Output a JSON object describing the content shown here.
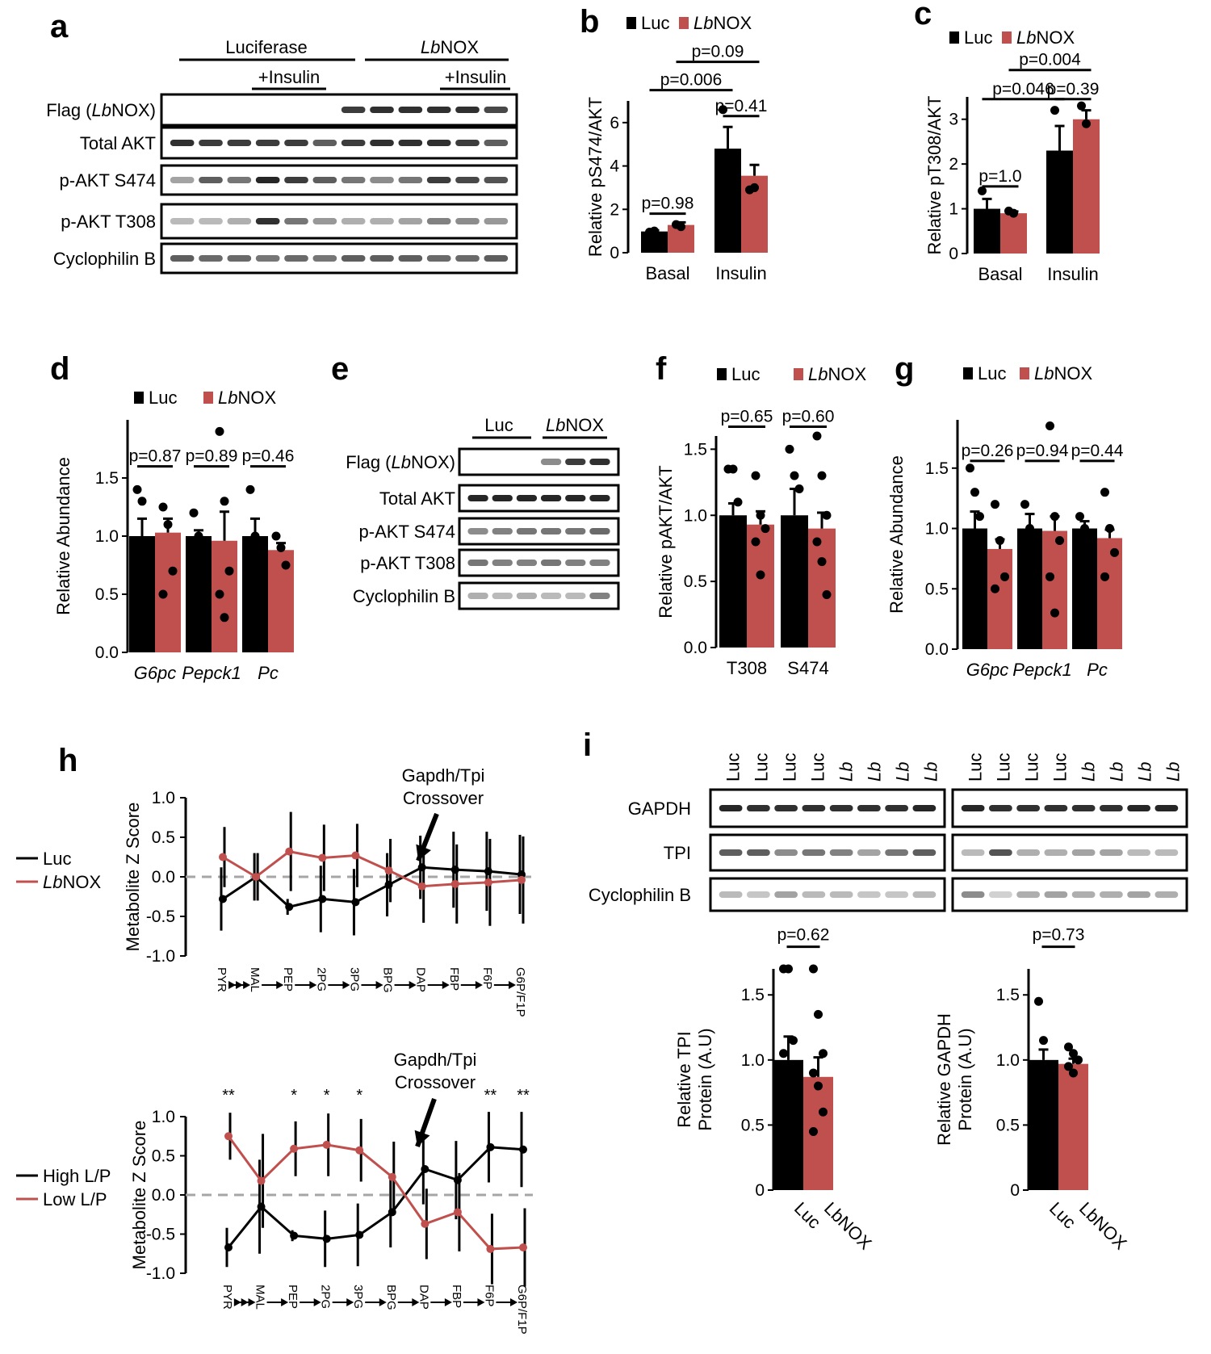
{
  "colors": {
    "luc": "#000000",
    "lbnox": "#c0504d",
    "dash": "#a6a6a6",
    "band": "#1a1a1a",
    "frame": "#000000"
  },
  "panel_a": {
    "label": "a",
    "group_left": "Luciferase",
    "group_right_italic": "Lb",
    "group_right_rest": "NOX",
    "insulin_left": "+Insulin",
    "insulin_right": "+Insulin",
    "rows": [
      {
        "pre": "Flag (",
        "it": "Lb",
        "post": "NOX)"
      },
      {
        "pre": "Total AKT",
        "it": "",
        "post": ""
      },
      {
        "pre": "p-AKT S474",
        "it": "",
        "post": ""
      },
      {
        "pre": "p-AKT T308",
        "it": "",
        "post": ""
      },
      {
        "pre": "Cyclophilin  B",
        "it": "",
        "post": ""
      }
    ]
  },
  "panel_e": {
    "label": "e",
    "group_left": "Luc",
    "group_right_italic": "Lb",
    "group_right_rest": "NOX",
    "rows": [
      {
        "pre": "Flag (",
        "it": "Lb",
        "post": "NOX)"
      },
      {
        "pre": "Total AKT",
        "it": "",
        "post": ""
      },
      {
        "pre": "p-AKT S474",
        "it": "",
        "post": ""
      },
      {
        "pre": "p-AKT T308",
        "it": "",
        "post": ""
      },
      {
        "pre": "Cyclophilin  B",
        "it": "",
        "post": ""
      }
    ]
  },
  "panel_i": {
    "label": "i",
    "lane_labels": [
      "Luc",
      "Luc",
      "Luc",
      "Luc",
      "Lb",
      "Lb",
      "Lb",
      "Lb"
    ],
    "rows": [
      "GAPDH",
      "TPI",
      "Cyclophilin  B"
    ]
  },
  "legend_luc": "Luc",
  "legend_lbnox_italic": "Lb",
  "legend_lbnox_rest": "NOX",
  "chart_data": [
    {
      "panel": "b",
      "type": "bar",
      "ylabel": "Relative pS474/AKT",
      "categories": [
        "Basal",
        "Insulin"
      ],
      "ylim": [
        0,
        7
      ],
      "yticks": [
        0,
        2,
        4,
        6
      ],
      "series": [
        {
          "name": "Luc",
          "values": [
            0.98,
            4.8
          ],
          "errors": [
            0.05,
            1.0
          ]
        },
        {
          "name": "LbNOX",
          "values": [
            1.28,
            3.55
          ],
          "errors": [
            0.12,
            0.5
          ]
        }
      ],
      "points": [
        [
          [
            0.95,
            1.0
          ],
          [
            1.3,
            1.2
          ]
        ],
        [
          [
            6.6,
            4.2
          ],
          [
            2.9,
            3.0
          ]
        ]
      ],
      "pvalues": [
        {
          "text": "p=0.98",
          "from": "0-0",
          "to": "0-1",
          "y": 1.8
        },
        {
          "text": "p=0.41",
          "from": "1-0",
          "to": "1-1",
          "y": 6.3
        },
        {
          "text": "p=0.006",
          "from": "0-0",
          "to": "1-0",
          "y": 7.5
        },
        {
          "text": "p=0.09",
          "from": "0-1",
          "to": "1-1",
          "y": 8.8
        }
      ]
    },
    {
      "panel": "c",
      "type": "bar",
      "ylabel": "Relative pT308/AKT",
      "categories": [
        "Basal",
        "Insulin"
      ],
      "ylim": [
        0,
        3.5
      ],
      "yticks": [
        0,
        1,
        2,
        3
      ],
      "series": [
        {
          "name": "Luc",
          "values": [
            1.0,
            2.3
          ],
          "errors": [
            0.22,
            0.55
          ]
        },
        {
          "name": "LbNOX",
          "values": [
            0.9,
            3.0
          ],
          "errors": [
            0.04,
            0.2
          ]
        }
      ],
      "points": [
        [
          [
            1.4,
            0.6
          ],
          [
            0.95,
            0.9
          ]
        ],
        [
          [
            3.2,
            1.9
          ],
          [
            3.3,
            2.9
          ]
        ]
      ],
      "pvalues": [
        {
          "text": "p=1.0",
          "from": "0-0",
          "to": "0-1",
          "y": 1.5
        },
        {
          "text": "p=0.046",
          "from": "0-0",
          "to": "1-0",
          "y": 3.45
        },
        {
          "text": "p=0.39",
          "from": "1-0",
          "to": "1-1",
          "y": 3.45
        },
        {
          "text": "p=0.004",
          "from": "0-1",
          "to": "1-1",
          "y": 4.1
        }
      ]
    },
    {
      "panel": "d",
      "type": "bar",
      "ylabel": "Relative Abundance",
      "xitalic": true,
      "categories": [
        "G6pc",
        "Pepck1",
        "Pc"
      ],
      "ylim": [
        0,
        2.0
      ],
      "yticks": [
        0.0,
        0.5,
        1.0,
        1.5
      ],
      "tick_labels": [
        "0.0",
        "0.5",
        "1.0",
        "1.5"
      ],
      "series": [
        {
          "name": "Luc",
          "values": [
            1.0,
            1.0,
            1.0
          ],
          "errors": [
            0.15,
            0.05,
            0.15
          ]
        },
        {
          "name": "LbNOX",
          "values": [
            1.03,
            0.96,
            0.88
          ],
          "errors": [
            0.12,
            0.25,
            0.06
          ]
        }
      ],
      "points": [
        [
          [
            1.4,
            1.3,
            0.8
          ],
          [
            1.25,
            1.1,
            0.7,
            0.5
          ]
        ],
        [
          [
            1.2,
            1.0,
            0.95
          ],
          [
            1.9,
            1.3,
            0.7,
            0.5,
            0.3
          ]
        ],
        [
          [
            1.4,
            1.0,
            0.8
          ],
          [
            1.0,
            0.9,
            0.75
          ]
        ]
      ],
      "pvalues": [
        {
          "text": "p=0.87",
          "from": "0-0",
          "to": "0-1",
          "y": 1.6
        },
        {
          "text": "p=0.89",
          "from": "1-0",
          "to": "1-1",
          "y": 1.6
        },
        {
          "text": "p=0.46",
          "from": "2-0",
          "to": "2-1",
          "y": 1.6
        }
      ]
    },
    {
      "panel": "f",
      "type": "bar",
      "ylabel": "Relative pAKT/AKT",
      "categories": [
        "T308",
        "S474"
      ],
      "ylim": [
        0,
        1.6
      ],
      "yticks": [
        0.0,
        0.5,
        1.0,
        1.5
      ],
      "tick_labels": [
        "0.0",
        "0.5",
        "1.0",
        "1.5"
      ],
      "series": [
        {
          "name": "Luc",
          "values": [
            1.0,
            1.0
          ],
          "errors": [
            0.09,
            0.2
          ]
        },
        {
          "name": "LbNOX",
          "values": [
            0.93,
            0.9
          ],
          "errors": [
            0.1,
            0.12
          ]
        }
      ],
      "points": [
        [
          [
            1.35,
            1.35,
            1.1,
            0.85
          ],
          [
            1.3,
            1.0,
            0.9,
            0.8,
            0.55
          ]
        ],
        [
          [
            1.5,
            1.3,
            1.2,
            0.9
          ],
          [
            1.6,
            1.3,
            1.0,
            0.8,
            0.65,
            0.4
          ]
        ]
      ],
      "pvalues": [
        {
          "text": "p=0.65",
          "from": "0-0",
          "to": "0-1",
          "y": 1.67
        },
        {
          "text": "p=0.60",
          "from": "1-0",
          "to": "1-1",
          "y": 1.67
        }
      ]
    },
    {
      "panel": "g",
      "type": "bar",
      "ylabel": "Relative Abundance",
      "xitalic": true,
      "categories": [
        "G6pc",
        "Pepck1",
        "Pc"
      ],
      "ylim": [
        0,
        1.9
      ],
      "yticks": [
        0.0,
        0.5,
        1.0,
        1.5
      ],
      "tick_labels": [
        "0.0",
        "0.5",
        "1.0",
        "1.5"
      ],
      "series": [
        {
          "name": "Luc",
          "values": [
            1.0,
            1.0,
            1.0
          ],
          "errors": [
            0.14,
            0.12,
            0.06
          ]
        },
        {
          "name": "LbNOX",
          "values": [
            0.83,
            0.98,
            0.92
          ],
          "errors": [
            0.08,
            0.12,
            0.07
          ]
        }
      ],
      "points": [
        [
          [
            1.5,
            1.3,
            1.1,
            0.7
          ],
          [
            1.2,
            0.9,
            0.6,
            0.5
          ]
        ],
        [
          [
            1.2,
            1.0,
            0.75
          ],
          [
            1.85,
            1.1,
            0.9,
            0.6,
            0.3
          ]
        ],
        [
          [
            1.1,
            1.0,
            0.9
          ],
          [
            1.3,
            1.0,
            0.8,
            0.6
          ]
        ]
      ],
      "pvalues": [
        {
          "text": "p=0.26",
          "from": "0-0",
          "to": "0-1",
          "y": 1.56
        },
        {
          "text": "p=0.94",
          "from": "1-0",
          "to": "1-1",
          "y": 1.56
        },
        {
          "text": "p=0.44",
          "from": "2-0",
          "to": "2-1",
          "y": 1.56
        }
      ]
    },
    {
      "panel": "h-top",
      "type": "line",
      "ylabel": "Metabolite Z Score",
      "x": [
        "PYR",
        "MAL",
        "PEP",
        "2PG",
        "3PG",
        "BPG",
        "DAP",
        "FBP",
        "F6P",
        "G6P/F1P"
      ],
      "ylim": [
        -1.0,
        1.0
      ],
      "yticks": [
        -1.0,
        -0.5,
        0.0,
        0.5,
        1.0
      ],
      "tick_labels": [
        "-1.0",
        "-0.5",
        "0.0",
        "0.5",
        "1.0"
      ],
      "annotation": [
        "Gapdh/Tpi",
        "Crossover"
      ],
      "series": [
        {
          "name": "Luc",
          "values": [
            -0.28,
            0.0,
            -0.38,
            -0.28,
            -0.32,
            -0.1,
            0.12,
            0.09,
            0.07,
            0.03
          ],
          "errors": [
            0.4,
            0.3,
            0.1,
            0.42,
            0.42,
            0.4,
            0.4,
            0.48,
            0.5,
            0.5
          ]
        },
        {
          "name": "LbNOX",
          "values": [
            0.25,
            0.0,
            0.32,
            0.24,
            0.27,
            0.08,
            -0.12,
            -0.09,
            -0.07,
            -0.04
          ],
          "errors": [
            0.38,
            0.3,
            0.5,
            0.42,
            0.4,
            0.4,
            0.46,
            0.5,
            0.55,
            0.55
          ]
        }
      ],
      "stars": []
    },
    {
      "panel": "h-bottom",
      "type": "line",
      "ylabel": "Metabolite Z Score",
      "x": [
        "PYR",
        "MAL",
        "PEP",
        "2PG",
        "3PG",
        "BPG",
        "DAP",
        "FBP",
        "F6P",
        "G6P/F1P"
      ],
      "ylim": [
        -1.0,
        1.0
      ],
      "yticks": [
        -1.0,
        -0.5,
        0.0,
        0.5,
        1.0
      ],
      "tick_labels": [
        "-1.0",
        "-0.5",
        "0.0",
        "0.5",
        "1.0"
      ],
      "annotation": [
        "Gapdh/Tpi",
        "Crossover"
      ],
      "series": [
        {
          "name": "High L/P",
          "values": [
            -0.67,
            -0.15,
            -0.52,
            -0.56,
            -0.51,
            -0.22,
            0.33,
            0.19,
            0.61,
            0.58
          ],
          "errors": [
            0.25,
            0.6,
            0.07,
            0.36,
            0.4,
            0.45,
            0.45,
            0.5,
            0.45,
            0.48
          ]
        },
        {
          "name": "Low L/P",
          "values": [
            0.75,
            0.18,
            0.59,
            0.64,
            0.57,
            0.23,
            -0.37,
            -0.22,
            -0.69,
            -0.67
          ],
          "errors": [
            0.3,
            0.6,
            0.35,
            0.4,
            0.4,
            0.45,
            0.45,
            0.5,
            0.45,
            0.5
          ]
        }
      ],
      "stars": [
        "**",
        "",
        "*",
        "*",
        "*",
        "",
        "",
        "",
        "**",
        "**"
      ]
    },
    {
      "panel": "i-TPI",
      "type": "bar",
      "ylabel": [
        "Relative TPI",
        "Protein (A.U)"
      ],
      "categories": [
        "Luc",
        "LbNOX"
      ],
      "ylim": [
        0,
        1.7
      ],
      "yticks": [
        0,
        0.5,
        1.0,
        1.5
      ],
      "tick_labels": [
        "0",
        "0.5",
        "1.0",
        "1.5"
      ],
      "values": [
        1.0,
        0.87
      ],
      "errors": [
        0.18,
        0.15
      ],
      "points": [
        [
          1.7,
          1.7,
          1.15,
          1.05,
          0.9
        ],
        [
          1.7,
          1.35,
          1.05,
          0.9,
          0.8,
          0.6,
          0.45
        ]
      ],
      "pvalues": [
        {
          "text": "p=0.62",
          "y": 1.87
        }
      ]
    },
    {
      "panel": "i-GAPDH",
      "type": "bar",
      "ylabel": [
        "Relative GAPDH",
        "Protein (A.U)"
      ],
      "categories": [
        "Luc",
        "LbNOX"
      ],
      "ylim": [
        0,
        1.7
      ],
      "yticks": [
        0,
        0.5,
        1.0,
        1.5
      ],
      "tick_labels": [
        "0",
        "0.5",
        "1.0",
        "1.5"
      ],
      "values": [
        1.0,
        0.97
      ],
      "errors": [
        0.08,
        0.04
      ],
      "points": [
        [
          1.45,
          1.15,
          0.95
        ],
        [
          1.1,
          1.05,
          1.0,
          0.95,
          0.9
        ]
      ],
      "pvalues": [
        {
          "text": "p=0.73",
          "y": 1.87
        }
      ]
    }
  ]
}
